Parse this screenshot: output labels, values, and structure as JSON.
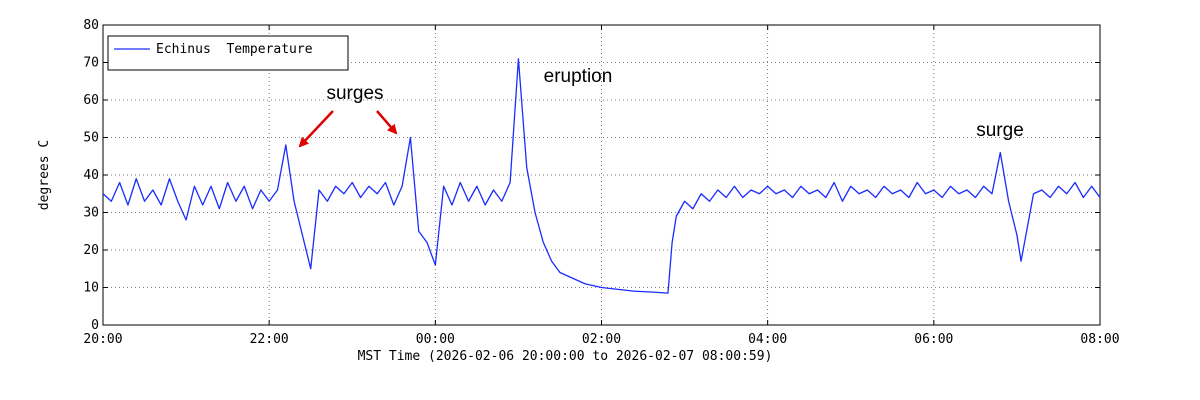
{
  "chart_data": {
    "type": "line",
    "xlabel": "MST Time (2026-02-06 20:00:00 to 2026-02-07 08:00:59)",
    "ylabel": "degrees C",
    "xlim": [
      0,
      12
    ],
    "xticks": [
      {
        "value": 0,
        "label": "20:00"
      },
      {
        "value": 2,
        "label": "22:00"
      },
      {
        "value": 4,
        "label": "00:00"
      },
      {
        "value": 6,
        "label": "02:00"
      },
      {
        "value": 8,
        "label": "04:00"
      },
      {
        "value": 10,
        "label": "06:00"
      },
      {
        "value": 12,
        "label": "08:00"
      }
    ],
    "ylim": [
      0,
      80
    ],
    "yticks": [
      0,
      10,
      20,
      30,
      40,
      50,
      60,
      70,
      80
    ],
    "grid": true,
    "legend": "upper left",
    "annotations": [
      "surges",
      "eruption",
      "surge"
    ],
    "x": [
      0,
      0.1,
      0.2,
      0.3,
      0.4,
      0.5,
      0.6,
      0.7,
      0.8,
      0.9,
      1.0,
      1.1,
      1.2,
      1.3,
      1.4,
      1.5,
      1.6,
      1.7,
      1.8,
      1.9,
      2.0,
      2.1,
      2.2,
      2.3,
      2.4,
      2.5,
      2.6,
      2.7,
      2.8,
      2.9,
      3.0,
      3.1,
      3.2,
      3.3,
      3.4,
      3.5,
      3.6,
      3.7,
      3.8,
      3.9,
      4.0,
      4.1,
      4.2,
      4.3,
      4.4,
      4.5,
      4.6,
      4.7,
      4.8,
      4.9,
      5.0,
      5.1,
      5.2,
      5.3,
      5.4,
      5.5,
      5.6,
      5.7,
      5.8,
      5.9,
      6.0,
      6.2,
      6.4,
      6.6,
      6.8,
      6.85,
      6.9,
      7.0,
      7.1,
      7.2,
      7.3,
      7.4,
      7.5,
      7.6,
      7.7,
      7.8,
      7.9,
      8.0,
      8.1,
      8.2,
      8.3,
      8.4,
      8.5,
      8.6,
      8.7,
      8.8,
      8.9,
      9.0,
      9.1,
      9.2,
      9.3,
      9.4,
      9.5,
      9.6,
      9.7,
      9.8,
      9.9,
      10.0,
      10.1,
      10.2,
      10.3,
      10.4,
      10.5,
      10.6,
      10.7,
      10.8,
      10.9,
      11.0,
      11.05,
      11.2,
      11.3,
      11.4,
      11.5,
      11.6,
      11.7,
      11.8,
      11.9,
      12.0
    ],
    "series": [
      {
        "name": "Echinus  Temperature",
        "color": "#1a2cff",
        "values": [
          35,
          33,
          38,
          32,
          39,
          33,
          36,
          32,
          39,
          33,
          28,
          37,
          32,
          37,
          31,
          38,
          33,
          37,
          31,
          36,
          33,
          36,
          48,
          33,
          24,
          15,
          36,
          33,
          37,
          35,
          38,
          34,
          37,
          35,
          38,
          32,
          37,
          50,
          25,
          22,
          16,
          37,
          32,
          38,
          33,
          37,
          32,
          36,
          33,
          38,
          71,
          42,
          30,
          22,
          17,
          14,
          13,
          12,
          11,
          10.5,
          10,
          9.5,
          9,
          8.8,
          8.5,
          22,
          29,
          33,
          31,
          35,
          33,
          36,
          34,
          37,
          34,
          36,
          35,
          37,
          35,
          36,
          34,
          37,
          35,
          36,
          34,
          38,
          33,
          37,
          35,
          36,
          34,
          37,
          35,
          36,
          34,
          38,
          35,
          36,
          34,
          37,
          35,
          36,
          34,
          37,
          35,
          46,
          33,
          24,
          17,
          35,
          36,
          34,
          37,
          35,
          38,
          34,
          37,
          34
        ]
      }
    ]
  }
}
